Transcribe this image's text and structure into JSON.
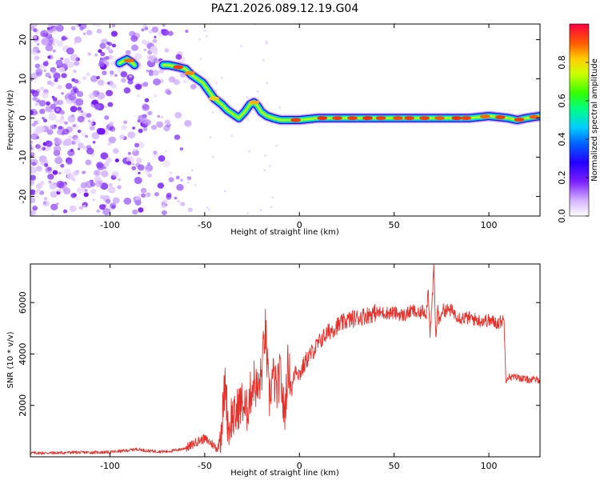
{
  "title": "PAZ1.2026.089.12.19.G04",
  "chart_data": [
    {
      "type": "heatmap",
      "name": "spectrogram",
      "xlabel": "Height of straight line (km)",
      "ylabel": "Frequency (Hz)",
      "xlim": [
        -142,
        127
      ],
      "ylim": [
        -25,
        24
      ],
      "xticks": [
        -100,
        -50,
        0,
        50,
        100
      ],
      "yticks": [
        -20,
        -10,
        0,
        10,
        20
      ],
      "xtick_labels": [
        "-100",
        "-50",
        "0",
        "50",
        "100"
      ],
      "ytick_labels": [
        "-20",
        "-10",
        "0",
        "10",
        "20"
      ],
      "ridge": {
        "x": [
          -95,
          -91,
          -88,
          -86,
          -80,
          -74,
          -69,
          -64,
          -60,
          -57,
          -54,
          -51,
          -48,
          -45,
          -41,
          -38,
          -35,
          -32,
          -29,
          -26,
          -24,
          -22,
          -20,
          -17,
          -14,
          -10,
          -5,
          0,
          10,
          30,
          50,
          60,
          70,
          80,
          90,
          100,
          110,
          115,
          120,
          127
        ],
        "y": [
          14,
          15,
          14,
          13,
          13,
          13.5,
          13.5,
          13,
          12.5,
          11,
          10,
          9,
          7,
          5,
          3.5,
          2,
          1,
          0,
          1.5,
          3.5,
          4,
          3,
          1.5,
          0.5,
          0,
          -0.5,
          -0.5,
          -0.5,
          0,
          0,
          0,
          0,
          0,
          0,
          0,
          0.5,
          0,
          -0.5,
          0,
          0.5
        ]
      },
      "noise_region": [
        -142,
        -60
      ],
      "colorbar": {
        "label": "Normalized spectral amplitude",
        "ticks": [
          0.0,
          0.2,
          0.4,
          0.6,
          0.8
        ],
        "tick_labels": [
          "0.0",
          "0.2",
          "0.4",
          "0.6",
          "0.8"
        ],
        "range": [
          0,
          1
        ]
      }
    },
    {
      "type": "line",
      "name": "snr",
      "xlabel": "Height of straight line (km)",
      "ylabel": "SNR (10 * v/v)",
      "xlim": [
        -142,
        127
      ],
      "ylim": [
        0,
        7500
      ],
      "xticks": [
        -100,
        -50,
        0,
        50,
        100
      ],
      "yticks": [
        2000,
        4000,
        6000
      ],
      "xtick_labels": [
        "-100",
        "-50",
        "0",
        "50",
        "100"
      ],
      "ytick_labels": [
        "2000",
        "4000",
        "6000"
      ],
      "color": "#e8302a",
      "series": [
        {
          "name": "SNR",
          "x": [
            -142,
            -130,
            -120,
            -110,
            -100,
            -90,
            -86,
            -80,
            -70,
            -62,
            -58,
            -54,
            -50,
            -46,
            -43,
            -41,
            -39,
            -38,
            -37,
            -36,
            -34,
            -32,
            -30,
            -28,
            -26,
            -24,
            -22,
            -20,
            -18,
            -16,
            -14,
            -12,
            -10,
            -8,
            -6,
            -4,
            -2,
            0,
            4,
            8,
            12,
            16,
            20,
            25,
            30,
            35,
            40,
            45,
            50,
            55,
            60,
            63,
            65,
            67,
            68,
            69,
            70,
            71,
            72,
            73,
            74,
            75,
            80,
            85,
            90,
            95,
            100,
            105,
            107,
            108,
            109,
            110,
            115,
            120,
            127
          ],
          "y": [
            150,
            150,
            170,
            170,
            180,
            250,
            300,
            230,
            200,
            300,
            400,
            600,
            700,
            500,
            300,
            1300,
            3000,
            1500,
            1000,
            1600,
            1500,
            2000,
            2100,
            1700,
            2400,
            3000,
            2500,
            3200,
            5000,
            2200,
            3200,
            2500,
            3300,
            1500,
            3600,
            2600,
            3500,
            3200,
            3800,
            4200,
            4600,
            4900,
            5100,
            5300,
            5400,
            5500,
            5600,
            5600,
            5600,
            5500,
            5700,
            5500,
            5700,
            5600,
            6500,
            4800,
            5900,
            7400,
            4500,
            5800,
            5200,
            5700,
            5700,
            5400,
            5400,
            5300,
            5300,
            5200,
            5300,
            5300,
            3000,
            3100,
            3100,
            3000,
            3000
          ]
        }
      ]
    }
  ]
}
